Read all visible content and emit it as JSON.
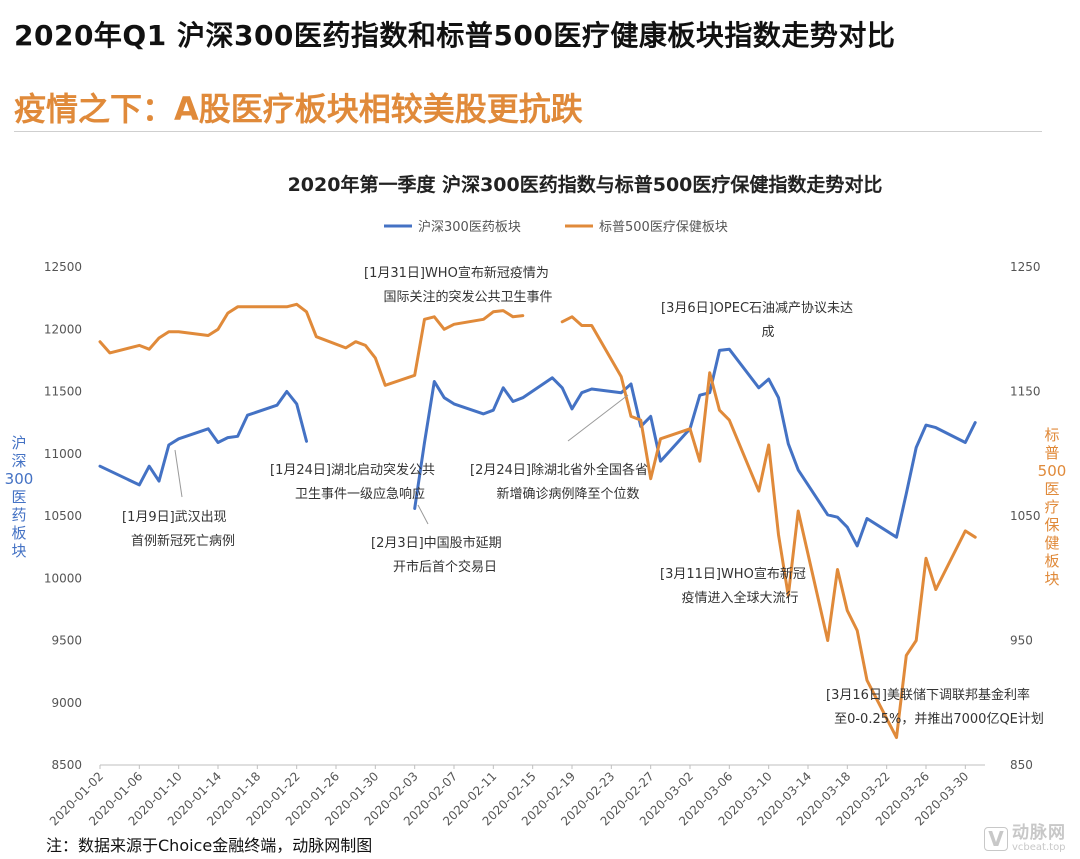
{
  "page": {
    "title": "2020年Q1 沪深300医药指数和标普500医疗健康板块指数走势对比",
    "subtitle": "疫情之下：A股医疗板块相较美股更抗跌",
    "footnote": "注：数据来源于Choice金融终端，动脉网制图",
    "watermark": {
      "name": "动脉网",
      "url": "vcbeat.top"
    }
  },
  "chart_data": {
    "type": "line",
    "title": "2020年第一季度 沪深300医药指数与标普500医疗保健指数走势对比",
    "legend_position": "top",
    "grid": false,
    "y_left": {
      "label": "沪深300医药板块",
      "ylim": [
        8500,
        12500
      ],
      "ticks": [
        8500,
        9000,
        9500,
        10000,
        10500,
        11000,
        11500,
        12000,
        12500
      ]
    },
    "y_right": {
      "label": "标普500医疗保健板块",
      "ylim": [
        850,
        1250
      ],
      "ticks": [
        850,
        950,
        1050,
        1150,
        1250
      ]
    },
    "x_range": [
      "2020-01-02",
      "2020-04-01"
    ],
    "x_ticks": [
      "2020-01-02",
      "2020-01-06",
      "2020-01-10",
      "2020-01-14",
      "2020-01-18",
      "2020-01-22",
      "2020-01-26",
      "2020-01-30",
      "2020-02-03",
      "2020-02-07",
      "2020-02-11",
      "2020-02-15",
      "2020-02-19",
      "2020-02-23",
      "2020-02-27",
      "2020-03-02",
      "2020-03-06",
      "2020-03-10",
      "2020-03-14",
      "2020-03-18",
      "2020-03-22",
      "2020-03-26",
      "2020-03-30"
    ],
    "series": [
      {
        "name": "沪深300医药板块",
        "axis": "left",
        "color": "#4472c4",
        "segments": [
          {
            "x": [
              "2020-01-02",
              "2020-01-06",
              "2020-01-07",
              "2020-01-08",
              "2020-01-09",
              "2020-01-10",
              "2020-01-13",
              "2020-01-14",
              "2020-01-15",
              "2020-01-16",
              "2020-01-17",
              "2020-01-20",
              "2020-01-21",
              "2020-01-22",
              "2020-01-23"
            ],
            "y": [
              10900,
              10750,
              10900,
              10780,
              11070,
              11120,
              11200,
              11090,
              11130,
              11140,
              11310,
              11390,
              11500,
              11400,
              11100
            ]
          },
          {
            "x": [
              "2020-02-03",
              "2020-02-04",
              "2020-02-05",
              "2020-02-06",
              "2020-02-07",
              "2020-02-10",
              "2020-02-11",
              "2020-02-12",
              "2020-02-13",
              "2020-02-14",
              "2020-02-17",
              "2020-02-18",
              "2020-02-19",
              "2020-02-20",
              "2020-02-21",
              "2020-02-24",
              "2020-02-25",
              "2020-02-26",
              "2020-02-27",
              "2020-02-28",
              "2020-03-02",
              "2020-03-03",
              "2020-03-04",
              "2020-03-05",
              "2020-03-06",
              "2020-03-09",
              "2020-03-10",
              "2020-03-11",
              "2020-03-12",
              "2020-03-13",
              "2020-03-16",
              "2020-03-17",
              "2020-03-18",
              "2020-03-19",
              "2020-03-20",
              "2020-03-23",
              "2020-03-24",
              "2020-03-25",
              "2020-03-26",
              "2020-03-27",
              "2020-03-30",
              "2020-03-31"
            ],
            "y": [
              10560,
              11090,
              11580,
              11450,
              11400,
              11320,
              11350,
              11530,
              11420,
              11450,
              11610,
              11530,
              11360,
              11490,
              11520,
              11490,
              11560,
              11220,
              11300,
              10940,
              11200,
              11470,
              11490,
              11830,
              11840,
              11530,
              11600,
              11450,
              11080,
              10870,
              10510,
              10490,
              10410,
              10260,
              10480,
              10330,
              10680,
              11050,
              11230,
              11210,
              11090,
              11250
            ]
          }
        ]
      },
      {
        "name": "标普500医疗保健板块",
        "axis": "right",
        "color": "#e08a3a",
        "segments": [
          {
            "x": [
              "2020-01-02",
              "2020-01-03",
              "2020-01-06",
              "2020-01-07",
              "2020-01-08",
              "2020-01-09",
              "2020-01-10",
              "2020-01-13",
              "2020-01-14",
              "2020-01-15",
              "2020-01-16",
              "2020-01-17",
              "2020-01-21",
              "2020-01-22",
              "2020-01-23",
              "2020-01-24",
              "2020-01-27",
              "2020-01-28",
              "2020-01-29",
              "2020-01-30",
              "2020-01-31",
              "2020-02-03",
              "2020-02-04",
              "2020-02-05",
              "2020-02-06",
              "2020-02-07",
              "2020-02-10",
              "2020-02-11",
              "2020-02-12",
              "2020-02-13",
              "2020-02-14"
            ],
            "y": [
              1190,
              1181,
              1187,
              1184,
              1193,
              1198,
              1198,
              1195,
              1200,
              1213,
              1218,
              1218,
              1218,
              1220,
              1214,
              1194,
              1185,
              1190,
              1187,
              1177,
              1155,
              1163,
              1208,
              1210,
              1200,
              1204,
              1208,
              1214,
              1215,
              1210,
              1211
            ]
          },
          {
            "x": [
              "2020-02-18",
              "2020-02-19",
              "2020-02-20",
              "2020-02-21",
              "2020-02-24",
              "2020-02-25",
              "2020-02-26",
              "2020-02-27",
              "2020-02-28",
              "2020-03-02",
              "2020-03-03",
              "2020-03-04",
              "2020-03-05",
              "2020-03-06",
              "2020-03-09",
              "2020-03-10",
              "2020-03-11",
              "2020-03-12",
              "2020-03-13",
              "2020-03-16",
              "2020-03-17",
              "2020-03-18",
              "2020-03-19",
              "2020-03-20",
              "2020-03-23",
              "2020-03-24",
              "2020-03-25",
              "2020-03-26",
              "2020-03-27",
              "2020-03-30",
              "2020-03-31"
            ],
            "y": [
              1206,
              1210,
              1203,
              1203,
              1162,
              1130,
              1127,
              1080,
              1112,
              1120,
              1094,
              1165,
              1135,
              1127,
              1070,
              1107,
              1035,
              986,
              1054,
              950,
              1007,
              974,
              958,
              918,
              872,
              938,
              950,
              1016,
              991,
              1038,
              1033
            ]
          }
        ]
      }
    ],
    "annotations": [
      {
        "text_lines": [
          "[1月9日]武汉出现",
          "首例新冠死亡病例"
        ],
        "date": "2020-01-09"
      },
      {
        "text_lines": [
          "[1月24日]湖北启动突发公共",
          "卫生事件一级应急响应"
        ],
        "date": "2020-01-24"
      },
      {
        "text_lines": [
          "[1月31日]WHO宣布新冠疫情为",
          "国际关注的突发公共卫生事件"
        ],
        "date": "2020-01-31"
      },
      {
        "text_lines": [
          "[2月3日]中国股市延期",
          "开市后首个交易日"
        ],
        "date": "2020-02-03"
      },
      {
        "text_lines": [
          "[2月24日]除湖北省外全国各省",
          "新增确诊病例降至个位数"
        ],
        "date": "2020-02-24"
      },
      {
        "text_lines": [
          "[3月6日]OPEC石油减产协议未达",
          "成"
        ],
        "date": "2020-03-06"
      },
      {
        "text_lines": [
          "[3月11日]WHO宣布新冠",
          "疫情进入全球大流行"
        ],
        "date": "2020-03-11"
      },
      {
        "text_lines": [
          "[3月16日]美联储下调联邦基金利率",
          "至0-0.25%，并推出7000亿QE计划"
        ],
        "date": "2020-03-16"
      }
    ]
  }
}
